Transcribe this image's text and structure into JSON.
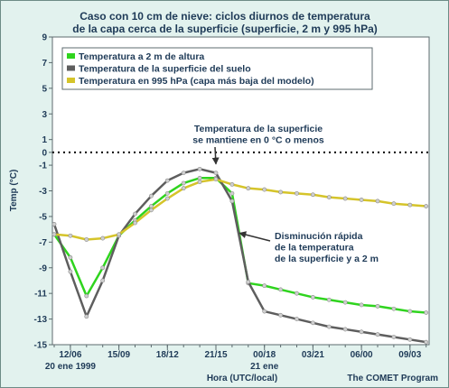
{
  "chart_data": {
    "type": "line",
    "title": "Caso con 10 cm de nieve: ciclos diurnos de temperatura",
    "subtitle": "de la capa cerca de la superficie (superficie, 2 m y 995 hPa)",
    "xlabel": "Hora (UTC/local)",
    "ylabel": "Temp (°C)",
    "credit": "The COMET Program",
    "ylim": [
      -15,
      9
    ],
    "yticks": [
      9,
      7,
      5,
      3,
      1,
      0,
      -1,
      -3,
      -5,
      -7,
      -9,
      -11,
      -13,
      -15
    ],
    "xlim": [
      0,
      23
    ],
    "xticks": [
      {
        "x": 1,
        "label": "12/06",
        "sub": "20  ene 1999"
      },
      {
        "x": 4,
        "label": "15/09",
        "sub": ""
      },
      {
        "x": 7,
        "label": "18/12",
        "sub": ""
      },
      {
        "x": 10,
        "label": "21/15",
        "sub": ""
      },
      {
        "x": 13,
        "label": "00/18",
        "sub": "21 ene"
      },
      {
        "x": 16,
        "label": "03/21",
        "sub": ""
      },
      {
        "x": 19,
        "label": "06/00",
        "sub": ""
      },
      {
        "x": 22,
        "label": "09/03",
        "sub": ""
      }
    ],
    "zero_line": 0,
    "x": [
      0,
      1,
      2,
      3,
      4,
      5,
      6,
      7,
      8,
      9,
      10,
      11,
      12,
      13,
      14,
      15,
      16,
      17,
      18,
      19,
      20,
      21,
      22,
      23
    ],
    "series": [
      {
        "name": "Temperatura a 2 m de altura",
        "color": "#2fd41e",
        "values": [
          -6.4,
          -8.2,
          -11.2,
          -9.0,
          -6.5,
          -5.3,
          -4.2,
          -3.2,
          -2.4,
          -2.0,
          -2.0,
          -3.2,
          -10.2,
          -10.4,
          -10.7,
          -11.0,
          -11.3,
          -11.5,
          -11.7,
          -11.9,
          -12.0,
          -12.2,
          -12.4,
          -12.5
        ]
      },
      {
        "name": "Temperatura de la superficie del suelo",
        "color": "#5e5e5e",
        "values": [
          -5.6,
          -9.3,
          -12.8,
          -10.0,
          -6.5,
          -4.8,
          -3.4,
          -2.2,
          -1.6,
          -1.3,
          -1.6,
          -3.8,
          -10.1,
          -12.4,
          -12.7,
          -13.0,
          -13.3,
          -13.6,
          -13.8,
          -14.0,
          -14.2,
          -14.4,
          -14.6,
          -14.8
        ]
      },
      {
        "name": "Temperatura en 995 hPa (capa más baja del modelo)",
        "color": "#d5c42a",
        "values": [
          -6.4,
          -6.5,
          -6.8,
          -6.7,
          -6.4,
          -5.5,
          -4.5,
          -3.6,
          -2.8,
          -2.3,
          -2.1,
          -2.5,
          -2.8,
          -2.9,
          -3.1,
          -3.2,
          -3.3,
          -3.5,
          -3.6,
          -3.7,
          -3.8,
          -4.0,
          -4.1,
          -4.2
        ]
      }
    ],
    "annotations": [
      {
        "lines": [
          "Temperatura de la superficie",
          "se mantiene en 0 °C o menos"
        ],
        "target_x": 10,
        "target_y": -0.9
      },
      {
        "lines": [
          "Disminución rápida",
          "de la temperatura",
          "de la superficie y a 2 m"
        ],
        "target_x": 11.3,
        "target_y": -6.3
      }
    ]
  },
  "colors": {
    "background": "#e2f2ee",
    "plot_area": "#ffffff",
    "text": "#1e3a57",
    "axis": "#5d6b6f",
    "arrow": "#333333"
  }
}
